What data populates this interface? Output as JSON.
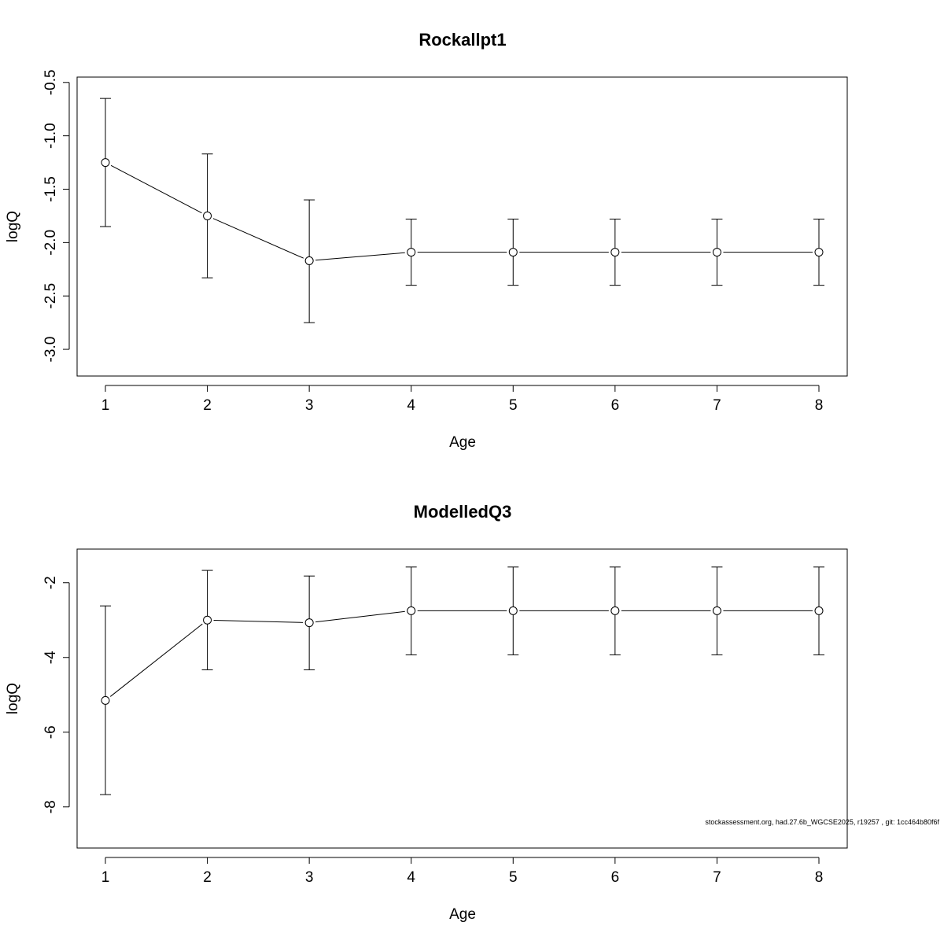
{
  "footnote": "stockassessment.org, had.27.6b_WGCSE2025, r19257 , git: 1cc464b80f6f",
  "chart_data": [
    {
      "type": "line",
      "title": "Rockallpt1",
      "xlabel": "Age",
      "ylabel": "logQ",
      "x": [
        1,
        2,
        3,
        4,
        5,
        6,
        7,
        8
      ],
      "x_ticks": [
        "1",
        "2",
        "3",
        "4",
        "5",
        "6",
        "7",
        "8"
      ],
      "y_ticks": [
        "-0.5",
        "-1.0",
        "-1.5",
        "-2.0",
        "-2.5",
        "-3.0"
      ],
      "ylim": [
        -3.25,
        -0.45
      ],
      "series": [
        {
          "values": [
            -1.25,
            -1.75,
            -2.17,
            -2.09,
            -2.09,
            -2.09,
            -2.09,
            -2.09
          ],
          "lower": [
            -1.85,
            -2.33,
            -2.75,
            -2.4,
            -2.4,
            -2.4,
            -2.4,
            -2.4
          ],
          "upper": [
            -0.65,
            -1.17,
            -1.6,
            -1.78,
            -1.78,
            -1.78,
            -1.78,
            -1.78
          ]
        }
      ],
      "grid": false
    },
    {
      "type": "line",
      "title": "ModelledQ3",
      "xlabel": "Age",
      "ylabel": "logQ",
      "x": [
        1,
        2,
        3,
        4,
        5,
        6,
        7,
        8
      ],
      "x_ticks": [
        "1",
        "2",
        "3",
        "4",
        "5",
        "6",
        "7",
        "8"
      ],
      "y_ticks": [
        "-2",
        "-4",
        "-6",
        "-8"
      ],
      "ylim": [
        -9.1,
        -1.1
      ],
      "series": [
        {
          "values": [
            -5.15,
            -3.0,
            -3.07,
            -2.75,
            -2.75,
            -2.75,
            -2.75,
            -2.75
          ],
          "lower": [
            -7.67,
            -4.33,
            -4.33,
            -3.93,
            -3.93,
            -3.93,
            -3.93,
            -3.93
          ],
          "upper": [
            -2.62,
            -1.67,
            -1.82,
            -1.58,
            -1.58,
            -1.58,
            -1.58,
            -1.58
          ]
        }
      ],
      "grid": false
    }
  ]
}
